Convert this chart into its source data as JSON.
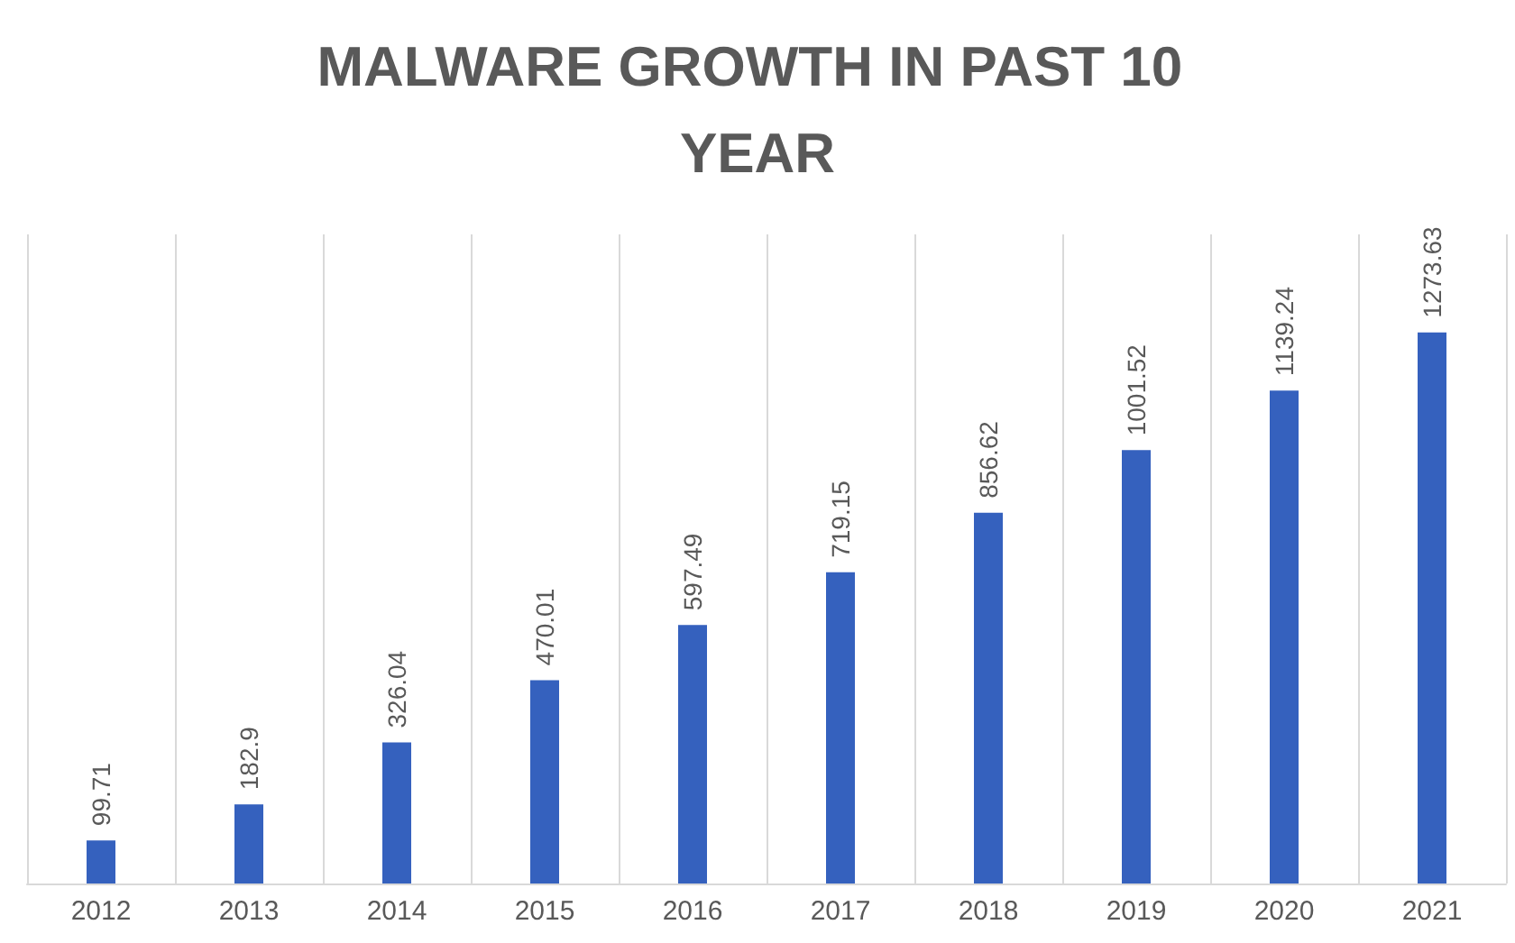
{
  "chart_data": {
    "type": "bar",
    "title": "MALWARE GROWTH IN PAST 10 YEAR",
    "categories": [
      "2012",
      "2013",
      "2014",
      "2015",
      "2016",
      "2017",
      "2018",
      "2019",
      "2020",
      "2021"
    ],
    "values": [
      99.71,
      182.9,
      326.04,
      470.01,
      597.49,
      719.15,
      856.62,
      1001.52,
      1139.24,
      1273.63
    ],
    "color": "#3561be",
    "data_labels": true,
    "grid": "x"
  }
}
